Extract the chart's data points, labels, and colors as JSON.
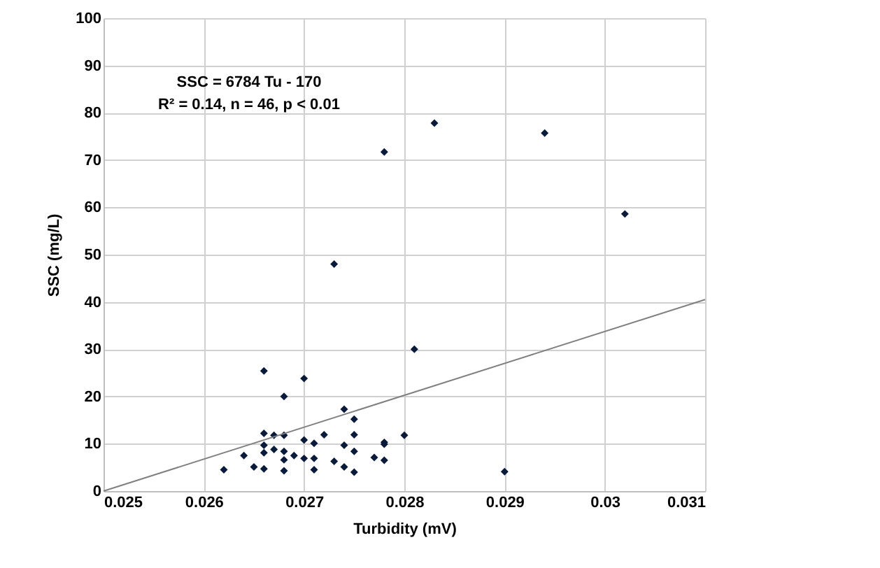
{
  "chart_data": {
    "type": "scatter",
    "xlabel": "Turbidity (mV)",
    "ylabel": "SSC (mg/L)",
    "annotations": [
      "SSC = 6784 Tu - 170",
      "R² = 0.14, n = 46, p < 0.01"
    ],
    "xlim": [
      0.025,
      0.031
    ],
    "xticks": [
      0.025,
      0.026,
      0.027,
      0.028,
      0.029,
      0.03,
      0.031
    ],
    "ylim": [
      0,
      100
    ],
    "yticks": [
      0,
      10,
      20,
      30,
      40,
      50,
      60,
      70,
      80,
      90,
      100
    ],
    "grid": true,
    "series": [
      {
        "type": "scatter",
        "marker": "diamond",
        "color": "#0a1a3a",
        "x": [
          0.0262,
          0.0264,
          0.0265,
          0.0266,
          0.0266,
          0.0266,
          0.0266,
          0.0266,
          0.0267,
          0.0267,
          0.0268,
          0.0268,
          0.0268,
          0.0268,
          0.0268,
          0.0269,
          0.027,
          0.027,
          0.027,
          0.0271,
          0.0271,
          0.0271,
          0.0272,
          0.0273,
          0.0274,
          0.0274,
          0.0274,
          0.0275,
          0.0275,
          0.0275,
          0.0275,
          0.0277,
          0.0278,
          0.0278,
          0.0278,
          0.028,
          0.0281,
          0.0273,
          0.0278,
          0.0283,
          0.0294,
          0.0302,
          0.029
        ],
        "values": [
          4.5,
          7.5,
          5.1,
          25.4,
          12.2,
          9.7,
          8.1,
          4.7,
          11.8,
          8.8,
          20,
          11.8,
          8.4,
          6.6,
          4.3,
          7.5,
          23.8,
          10.8,
          6.9,
          10.1,
          6.9,
          4.5,
          11.9,
          6.3,
          17.3,
          9.7,
          5.1,
          15.2,
          11.9,
          8.4,
          4,
          7.1,
          10.3,
          9.9,
          6.5,
          11.8,
          30,
          48,
          71.7,
          77.8,
          75.7,
          58.6,
          4.1
        ]
      },
      {
        "type": "line",
        "color": "#808080",
        "x": [
          0.025,
          0.031
        ],
        "values": [
          0,
          40.5
        ]
      }
    ]
  }
}
